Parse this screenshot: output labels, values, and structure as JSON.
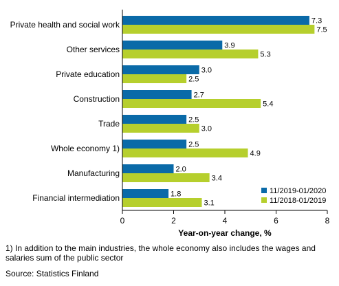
{
  "chart_data": {
    "type": "bar",
    "orientation": "horizontal",
    "categories": [
      "Private health and social work",
      "Other services",
      "Private education",
      "Construction",
      "Trade",
      "Whole economy 1)",
      "Manufacturing",
      "Financial intermediation"
    ],
    "series": [
      {
        "name": "11/2019-01/2020",
        "color": "#0a6aa8",
        "values": [
          7.3,
          3.9,
          3.0,
          2.7,
          2.5,
          2.5,
          2.0,
          1.8
        ]
      },
      {
        "name": "11/2018-01/2019",
        "color": "#b6cf2d",
        "values": [
          7.5,
          5.3,
          2.5,
          5.4,
          3.0,
          4.9,
          3.4,
          3.1
        ]
      }
    ],
    "xlabel": "Year-on-year change, %",
    "xlim": [
      0,
      8
    ],
    "xticks": [
      0,
      2,
      4,
      6,
      8
    ],
    "grid": false,
    "legend_position": "bottom-right"
  },
  "footnote": "1) In addition to the main industries, the whole economy also includes the wages and salaries sum of the public sector",
  "source": "Source: Statistics Finland"
}
